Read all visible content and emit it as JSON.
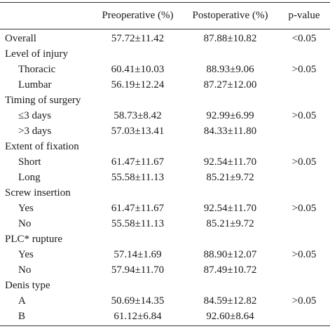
{
  "header": {
    "col0": "",
    "col1": "Preoperative (%)",
    "col2": "Postoperative (%)",
    "col3": "p-value"
  },
  "rows": [
    {
      "label": "Overall",
      "pre": "57.72±11.42",
      "post": "87.88±10.82",
      "p": "<0.05"
    },
    {
      "label": "Level of injury",
      "pre": "",
      "post": "",
      "p": ""
    },
    {
      "label": "Thoracic",
      "pre": "60.41±10.03",
      "post": "88.93±9.06",
      "p": ">0.05"
    },
    {
      "label": "Lumbar",
      "pre": "56.19±12.24",
      "post": "87.27±12.00",
      "p": ""
    },
    {
      "label": "Timing of surgery",
      "pre": "",
      "post": "",
      "p": ""
    },
    {
      "label": "≤3 days",
      "pre": "58.73±8.42",
      "post": "92.99±6.99",
      "p": ">0.05"
    },
    {
      "label": ">3 days",
      "pre": "57.03±13.41",
      "post": "84.33±11.80",
      "p": ""
    },
    {
      "label": "Extent of fixation",
      "pre": "",
      "post": "",
      "p": ""
    },
    {
      "label": "Short",
      "pre": "61.47±11.67",
      "post": "92.54±11.70",
      "p": ">0.05"
    },
    {
      "label": "Long",
      "pre": "55.58±11.13",
      "post": "85.21±9.72",
      "p": ""
    },
    {
      "label": "Screw insertion",
      "pre": "",
      "post": "",
      "p": ""
    },
    {
      "label": "Yes",
      "pre": "61.47±11.67",
      "post": "92.54±11.70",
      "p": ">0.05"
    },
    {
      "label": "No",
      "pre": "55.58±11.13",
      "post": "85.21±9.72",
      "p": ""
    },
    {
      "label": "PLC* rupture",
      "pre": "",
      "post": "",
      "p": ""
    },
    {
      "label": "Yes",
      "pre": "57.14±1.69",
      "post": "88.90±12.07",
      "p": ">0.05"
    },
    {
      "label": "No",
      "pre": "57.94±11.70",
      "post": "87.49±10.72",
      "p": ""
    },
    {
      "label": "Denis type",
      "pre": "",
      "post": "",
      "p": ""
    },
    {
      "label": "A",
      "pre": "50.69±14.35",
      "post": "84.59±12.82",
      "p": ">0.05"
    },
    {
      "label": "B",
      "pre": "61.12±6.84",
      "post": "92.60±8.64",
      "p": ""
    }
  ]
}
